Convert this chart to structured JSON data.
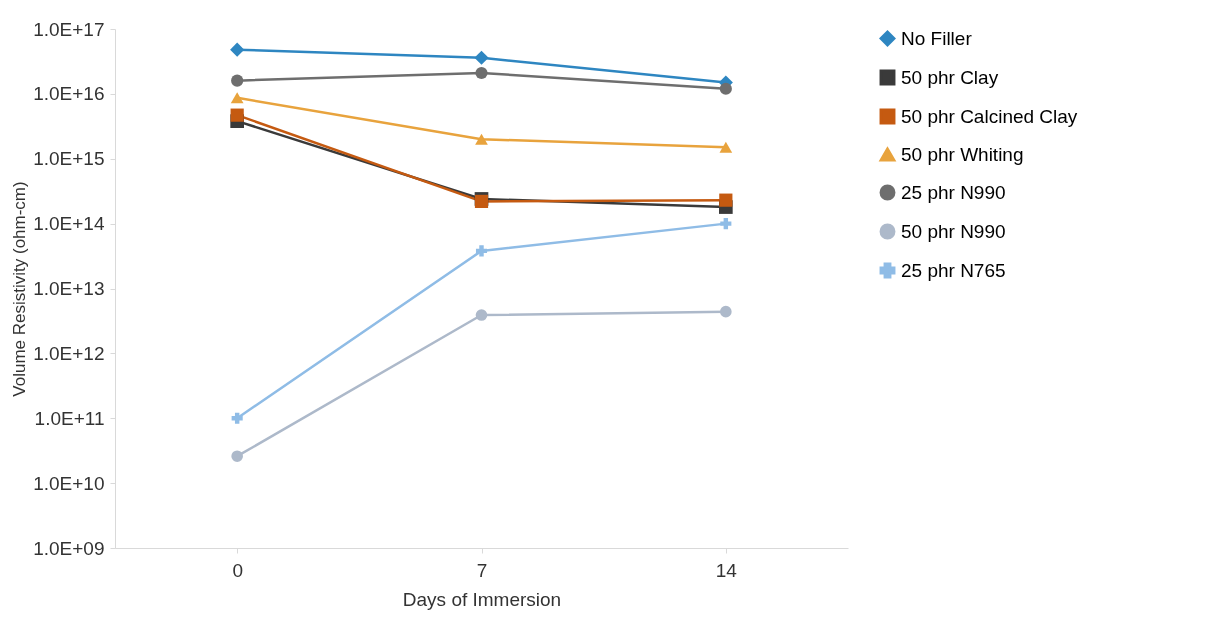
{
  "chart_data": {
    "type": "line",
    "xlabel": "Days of Immersion",
    "ylabel": "Volume Resistivity (ohm-cm)",
    "categories": [
      "0",
      "7",
      "14"
    ],
    "series": [
      {
        "name": "No Filler",
        "color": "#2e86c1",
        "marker": "diamond",
        "values": [
          4.8e+16,
          3.6e+16,
          1.5e+16
        ]
      },
      {
        "name": "50 phr Clay",
        "color": "#3a3a3a",
        "marker": "square",
        "values": [
          3800000000000000.0,
          240000000000000.0,
          180000000000000.0
        ]
      },
      {
        "name": "50 phr Calcined Clay",
        "color": "#c55a11",
        "marker": "square",
        "values": [
          4700000000000000.0,
          220000000000000.0,
          230000000000000.0
        ]
      },
      {
        "name": "50 phr Whiting",
        "color": "#e8a33d",
        "marker": "triangle",
        "values": [
          8700000000000000.0,
          2000000000000000.0,
          1500000000000000.0
        ]
      },
      {
        "name": "25 phr N990",
        "color": "#6e6e6e",
        "marker": "circle",
        "values": [
          1.6e+16,
          2.1e+16,
          1.2e+16
        ]
      },
      {
        "name": "50 phr N990",
        "color": "#adb9ca",
        "marker": "circle",
        "values": [
          26000000000.0,
          3900000000000.0,
          4400000000000.0
        ]
      },
      {
        "name": "25 phr N765",
        "color": "#8fbce6",
        "marker": "cross",
        "values": [
          100000000000.0,
          38000000000000.0,
          100000000000000.0
        ]
      }
    ],
    "log": true,
    "ylim": [
      1000000000.0,
      1e+17
    ],
    "yticks": [
      {
        "value": 1000000000.0,
        "label": "1.0E+09"
      },
      {
        "value": 10000000000.0,
        "label": "1.0E+10"
      },
      {
        "value": 100000000000.0,
        "label": "1.0E+11"
      },
      {
        "value": 1000000000000.0,
        "label": "1.0E+12"
      },
      {
        "value": 10000000000000.0,
        "label": "1.0E+13"
      },
      {
        "value": 100000000000000.0,
        "label": "1.0E+14"
      },
      {
        "value": 1000000000000000.0,
        "label": "1.0E+15"
      },
      {
        "value": 1e+16,
        "label": "1.0E+16"
      },
      {
        "value": 1e+17,
        "label": "1.0E+17"
      }
    ],
    "grid": false,
    "legend": "right",
    "line_style": "solid"
  }
}
